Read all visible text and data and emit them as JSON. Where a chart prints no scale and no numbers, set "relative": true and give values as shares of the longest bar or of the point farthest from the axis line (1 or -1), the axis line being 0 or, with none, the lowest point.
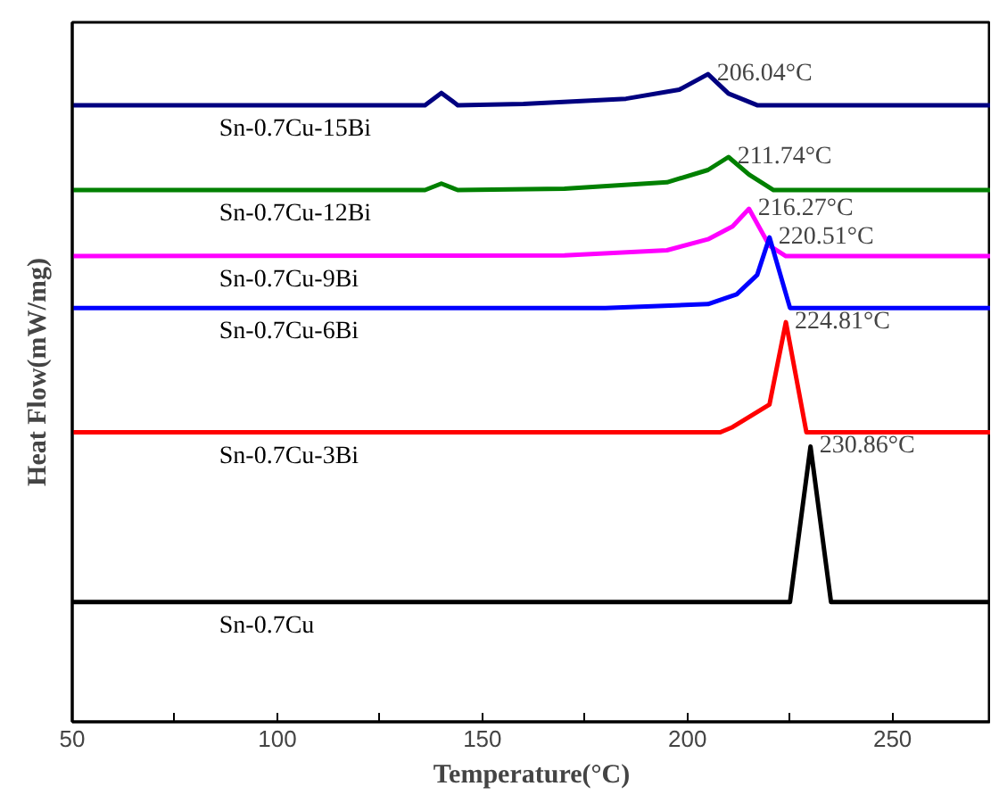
{
  "chart_data": {
    "type": "line",
    "relative": true,
    "xlabel": "Temperature(°C)",
    "ylabel": "Heat Flow(mW/mg)",
    "xlim": [
      50,
      274
    ],
    "xticks": [
      50,
      {
        "value": 75,
        "label": null
      },
      100,
      {
        "value": 125,
        "label": null
      },
      150,
      {
        "value": 175,
        "label": null
      },
      200,
      {
        "value": 225,
        "label": null
      },
      250
    ],
    "grid": false,
    "marker": "none",
    "line_style": "solid",
    "series": [
      {
        "name": "Sn-0.7Cu-15Bi",
        "color": "#000080",
        "x": [
          50,
          136,
          140,
          144,
          160,
          185,
          198,
          205,
          210,
          217,
          274
        ],
        "values": [
          0.952,
          0.952,
          0.971,
          0.952,
          0.954,
          0.962,
          0.976,
          1.0,
          0.97,
          0.952,
          0.952
        ]
      },
      {
        "name": "Sn-0.7Cu-12Bi",
        "color": "#008000",
        "x": [
          50,
          136,
          140,
          144,
          170,
          195,
          205,
          210,
          215,
          221,
          274
        ],
        "values": [
          0.821,
          0.821,
          0.831,
          0.821,
          0.823,
          0.833,
          0.852,
          0.872,
          0.845,
          0.821,
          0.821
        ]
      },
      {
        "name": "Sn-0.7Cu-9Bi",
        "color": "#ff00ff",
        "x": [
          50,
          170,
          195,
          205,
          211,
          215,
          220,
          224,
          274
        ],
        "values": [
          0.719,
          0.72,
          0.728,
          0.745,
          0.765,
          0.792,
          0.735,
          0.719,
          0.719
        ]
      },
      {
        "name": "Sn-0.7Cu-6Bi",
        "color": "#0000ff",
        "x": [
          50,
          180,
          205,
          212,
          217,
          220,
          225,
          274
        ],
        "values": [
          0.639,
          0.639,
          0.645,
          0.66,
          0.69,
          0.748,
          0.639,
          0.639
        ]
      },
      {
        "name": "Sn-0.7Cu-3Bi",
        "color": "#ff0000",
        "x": [
          50,
          208,
          211,
          220,
          224,
          229,
          274
        ],
        "values": [
          0.447,
          0.447,
          0.455,
          0.49,
          0.617,
          0.447,
          0.447
        ]
      },
      {
        "name": "Sn-0.7Cu",
        "color": "#000000",
        "x": [
          50,
          225,
          230,
          235,
          274
        ],
        "values": [
          0.185,
          0.185,
          0.425,
          0.185,
          0.185
        ]
      }
    ],
    "annotations": [
      {
        "text": "206.04°C",
        "x": 205,
        "y": 1.0
      },
      {
        "text": "211.74°C",
        "x": 210,
        "y": 0.872
      },
      {
        "text": "216.27°C",
        "x": 215,
        "y": 0.792
      },
      {
        "text": "220.51°C",
        "x": 220,
        "y": 0.748
      },
      {
        "text": "224.81°C",
        "x": 224,
        "y": 0.617
      },
      {
        "text": "230.86°C",
        "x": 230,
        "y": 0.425
      }
    ]
  }
}
